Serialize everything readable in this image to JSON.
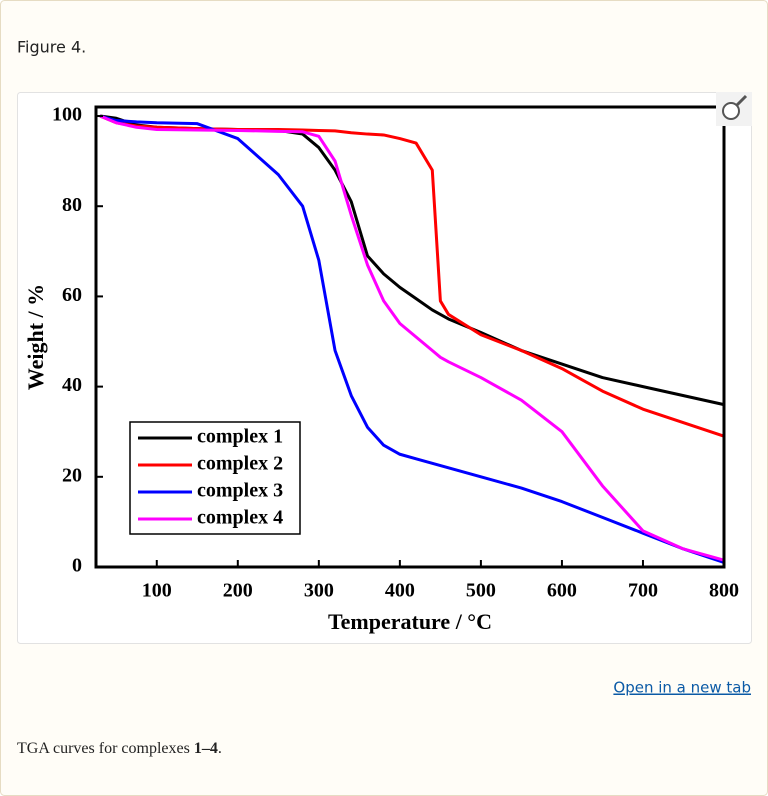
{
  "header": {
    "title": "Figure 4."
  },
  "chart_data": {
    "type": "line",
    "x_label": "Temperature / °C",
    "y_label": "Weight / %",
    "x": [
      30,
      50,
      75,
      100,
      150,
      200,
      250,
      280,
      300,
      320,
      340,
      360,
      380,
      400,
      420,
      440,
      450,
      460,
      500,
      550,
      600,
      650,
      700,
      750,
      800
    ],
    "series": [
      {
        "name": "complex 1",
        "color": "#000000",
        "values": [
          100,
          99.5,
          98,
          97.5,
          97.2,
          97,
          96.8,
          96,
          93,
          88,
          81,
          69,
          65,
          62,
          59.5,
          57,
          56,
          55,
          52,
          48,
          45,
          42,
          40,
          38,
          36
        ]
      },
      {
        "name": "complex 2",
        "color": "#ff0000",
        "values": [
          100,
          98.5,
          97.8,
          97.5,
          97.2,
          97,
          97,
          96.9,
          96.8,
          96.7,
          96.3,
          96,
          95.8,
          95,
          94,
          88,
          59,
          56,
          51.5,
          48,
          44,
          39,
          35,
          32,
          29
        ]
      },
      {
        "name": "complex 3",
        "color": "#0000ff",
        "values": [
          100,
          99,
          98.7,
          98.5,
          98.3,
          95,
          87,
          80,
          68,
          48,
          38,
          31,
          27,
          25,
          24,
          23,
          22.5,
          22,
          20,
          17.5,
          14.5,
          11,
          7.5,
          4,
          1
        ]
      },
      {
        "name": "complex 4",
        "color": "#ff00ff",
        "values": [
          100,
          98.5,
          97.5,
          97,
          96.9,
          96.8,
          96.6,
          96.5,
          95.5,
          90,
          78,
          67,
          59,
          54,
          51,
          48,
          46.5,
          45.5,
          42,
          37,
          30,
          18,
          8,
          4,
          1.5
        ]
      }
    ],
    "xlim": [
      25,
      800
    ],
    "ylim": [
      0,
      102
    ],
    "xticks": [
      100,
      200,
      300,
      400,
      500,
      600,
      700,
      800
    ],
    "yticks": [
      0,
      20,
      40,
      60,
      80,
      100
    ],
    "legend": "lower left"
  },
  "link": "Open in a new tab",
  "caption": {
    "text": "TGA curves for complexes ",
    "bold": "1–4",
    "end": "."
  }
}
